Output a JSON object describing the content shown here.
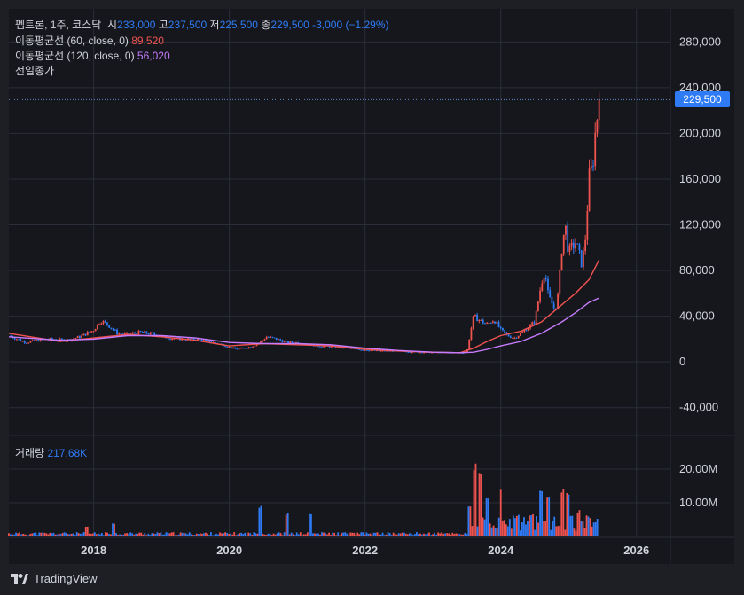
{
  "header": {
    "symbol": "펩트론, 1주, 코스닥",
    "open_label": "시",
    "open": "233,000",
    "high_label": "고",
    "high": "237,500",
    "low_label": "저",
    "low": "225,500",
    "close_label": "종",
    "close": "229,500",
    "change": "-3,000 (−1.29%)"
  },
  "indicators": [
    {
      "label": "이동평균선 (60, close, 0)",
      "value": "89,520"
    },
    {
      "label": "이동평균선 (120, close, 0)",
      "value": "56,020"
    },
    {
      "label": "전일종가",
      "value": ""
    }
  ],
  "volume_label": "거래량",
  "volume_value": "217.68K",
  "price_tag": "229,500",
  "brand": "TradingView",
  "colors": {
    "up": "#ef5350",
    "down": "#2f7bf5",
    "ma60": "#ef5350",
    "ma120": "#c77cff",
    "background": "#16171c",
    "grid": "#2a2e39"
  },
  "chart_data": {
    "type": "line",
    "price_axis": {
      "ticks": [
        "280,000",
        "240,000",
        "200,000",
        "160,000",
        "120,000",
        "80,000",
        "40,000",
        "0",
        "-40,000"
      ],
      "ylim": [
        -48000,
        295000
      ]
    },
    "volume_axis": {
      "ticks": [
        "20.00M",
        "10.00M"
      ],
      "ylim": [
        0,
        25000000
      ]
    },
    "x_ticks": [
      "2018",
      "2020",
      "2022",
      "2024",
      "2026"
    ],
    "xlim": [
      2016.75,
      2026.5
    ],
    "series": [
      {
        "name": "종가",
        "color": "#d1d4dc",
        "x": [
          2016.75,
          2017.0,
          2017.3,
          2017.6,
          2017.8,
          2018.0,
          2018.1,
          2018.2,
          2018.35,
          2018.5,
          2018.7,
          2018.9,
          2019.1,
          2019.3,
          2019.5,
          2019.7,
          2019.9,
          2020.1,
          2020.3,
          2020.45,
          2020.55,
          2020.7,
          2020.85,
          2021.0,
          2021.3,
          2021.6,
          2021.9,
          2022.2,
          2022.5,
          2022.8,
          2023.1,
          2023.4,
          2023.5,
          2023.55,
          2023.6,
          2023.7,
          2023.8,
          2023.9,
          2024.0,
          2024.1,
          2024.2,
          2024.3,
          2024.4,
          2024.5,
          2024.6,
          2024.65,
          2024.7,
          2024.8,
          2024.85,
          2024.9,
          2024.95,
          2025.0,
          2025.1,
          2025.2,
          2025.25,
          2025.3,
          2025.35,
          2025.4,
          2025.45
        ],
        "y": [
          23000,
          17000,
          20000,
          19000,
          22000,
          28000,
          36000,
          33000,
          25000,
          24000,
          26000,
          24000,
          21000,
          20000,
          20000,
          18000,
          15000,
          11000,
          13000,
          17000,
          22000,
          20000,
          17000,
          17000,
          14000,
          13000,
          11000,
          9500,
          9500,
          8500,
          8000,
          8000,
          8500,
          25000,
          40000,
          36000,
          33000,
          37000,
          28000,
          23000,
          21000,
          25000,
          30000,
          35000,
          70000,
          80000,
          58000,
          45000,
          60000,
          100000,
          120000,
          95000,
          105000,
          85000,
          110000,
          160000,
          170000,
          205000,
          229500
        ]
      },
      {
        "name": "이동평균선 (60, close, 0)",
        "color": "#ef5350",
        "x": [
          2016.75,
          2017.5,
          2018.0,
          2018.5,
          2019.0,
          2019.5,
          2020.0,
          2020.5,
          2021.0,
          2021.5,
          2022.0,
          2022.5,
          2023.0,
          2023.4,
          2023.6,
          2023.8,
          2024.0,
          2024.3,
          2024.6,
          2024.9,
          2025.1,
          2025.3,
          2025.45
        ],
        "y": [
          25000,
          18000,
          21000,
          24000,
          22000,
          19000,
          14000,
          16000,
          15000,
          14000,
          11000,
          9500,
          8500,
          8000,
          12000,
          18000,
          23000,
          27000,
          35000,
          50000,
          60000,
          72000,
          89520
        ]
      },
      {
        "name": "이동평균선 (120, close, 0)",
        "color": "#c77cff",
        "x": [
          2016.75,
          2017.5,
          2018.0,
          2018.5,
          2019.0,
          2019.5,
          2020.0,
          2020.5,
          2021.0,
          2021.5,
          2022.0,
          2022.5,
          2023.0,
          2023.4,
          2023.6,
          2023.8,
          2024.0,
          2024.3,
          2024.6,
          2024.9,
          2025.1,
          2025.3,
          2025.45
        ],
        "y": [
          22000,
          19000,
          20000,
          23000,
          23000,
          21000,
          17000,
          16000,
          16000,
          15000,
          12000,
          10000,
          8500,
          8000,
          8500,
          11000,
          14000,
          18000,
          25000,
          35000,
          43000,
          52000,
          56020
        ]
      }
    ],
    "volume": {
      "start": 2016.75,
      "end": 2025.45,
      "spikes": [
        {
          "x": 2017.9,
          "value": 3000000
        },
        {
          "x": 2018.3,
          "value": 4000000
        },
        {
          "x": 2020.45,
          "value": 10000000
        },
        {
          "x": 2020.85,
          "value": 7000000
        },
        {
          "x": 2021.2,
          "value": 7000000
        },
        {
          "x": 2023.55,
          "value": 9000000
        },
        {
          "x": 2023.62,
          "value": 22000000
        },
        {
          "x": 2023.7,
          "value": 21000000
        },
        {
          "x": 2023.8,
          "value": 12000000
        },
        {
          "x": 2024.0,
          "value": 14000000
        },
        {
          "x": 2024.2,
          "value": 6000000
        },
        {
          "x": 2024.45,
          "value": 7000000
        },
        {
          "x": 2024.6,
          "value": 15000000
        },
        {
          "x": 2024.7,
          "value": 12000000
        },
        {
          "x": 2024.9,
          "value": 15000000
        },
        {
          "x": 2025.0,
          "value": 13000000
        },
        {
          "x": 2025.15,
          "value": 8000000
        },
        {
          "x": 2025.3,
          "value": 6000000
        }
      ]
    },
    "last_price": 229500
  }
}
